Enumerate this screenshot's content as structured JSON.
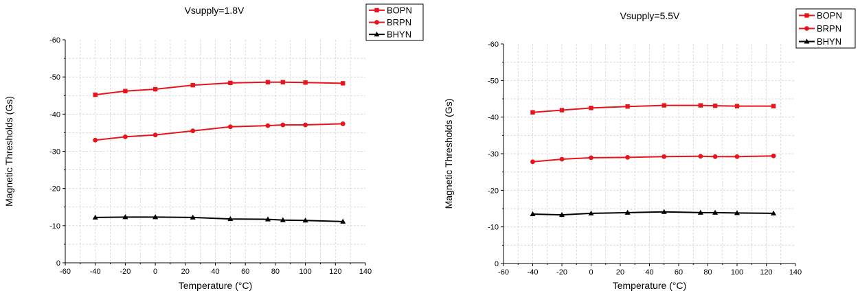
{
  "chart_data": [
    {
      "type": "line",
      "title": "Vsupply=1.8V",
      "xlabel": "Temperature (°C)",
      "ylabel": "Magnetic Thresholds (Gs)",
      "xlim": [
        -60,
        140
      ],
      "ylim": [
        0,
        -60
      ],
      "x_ticks": [
        -60,
        -40,
        -20,
        0,
        20,
        40,
        60,
        80,
        100,
        120,
        140
      ],
      "y_ticks": [
        -60,
        -50,
        -40,
        -30,
        -20,
        -10,
        0
      ],
      "grid": true,
      "legend_position": "top-right",
      "x": [
        -40,
        -20,
        0,
        25,
        50,
        75,
        85,
        100,
        125
      ],
      "series": [
        {
          "name": "BOPN",
          "marker": "square",
          "color": "#e8141b",
          "values": [
            -45.2,
            -46.2,
            -46.7,
            -47.8,
            -48.4,
            -48.6,
            -48.6,
            -48.5,
            -48.3
          ]
        },
        {
          "name": "BRPN",
          "marker": "circle",
          "color": "#e8141b",
          "values": [
            -33.0,
            -33.9,
            -34.4,
            -35.5,
            -36.6,
            -36.9,
            -37.1,
            -37.1,
            -37.4
          ]
        },
        {
          "name": "BHYN",
          "marker": "triangle",
          "color": "#000000",
          "values": [
            -12.2,
            -12.3,
            -12.3,
            -12.2,
            -11.8,
            -11.7,
            -11.5,
            -11.4,
            -11.1
          ]
        }
      ]
    },
    {
      "type": "line",
      "title": "Vsupply=5.5V",
      "xlabel": "Temperature (°C)",
      "ylabel": "Magnetic Thresholds (Gs)",
      "xlim": [
        -60,
        140
      ],
      "ylim": [
        0,
        -60
      ],
      "x_ticks": [
        -60,
        -40,
        -20,
        0,
        20,
        40,
        60,
        80,
        100,
        120,
        140
      ],
      "y_ticks": [
        -60,
        -50,
        -40,
        -30,
        -20,
        -10,
        0
      ],
      "grid": true,
      "legend_position": "top-right",
      "x": [
        -40,
        -20,
        0,
        25,
        50,
        75,
        85,
        100,
        125
      ],
      "series": [
        {
          "name": "BOPN",
          "marker": "square",
          "color": "#e8141b",
          "values": [
            -41.3,
            -41.9,
            -42.5,
            -42.9,
            -43.2,
            -43.2,
            -43.1,
            -43.0,
            -43.0
          ]
        },
        {
          "name": "BRPN",
          "marker": "circle",
          "color": "#e8141b",
          "values": [
            -27.8,
            -28.5,
            -28.9,
            -29.0,
            -29.2,
            -29.3,
            -29.2,
            -29.2,
            -29.4
          ]
        },
        {
          "name": "BHYN",
          "marker": "triangle",
          "color": "#000000",
          "values": [
            -13.5,
            -13.3,
            -13.7,
            -13.9,
            -14.1,
            -13.9,
            -13.9,
            -13.8,
            -13.7
          ]
        }
      ]
    }
  ]
}
